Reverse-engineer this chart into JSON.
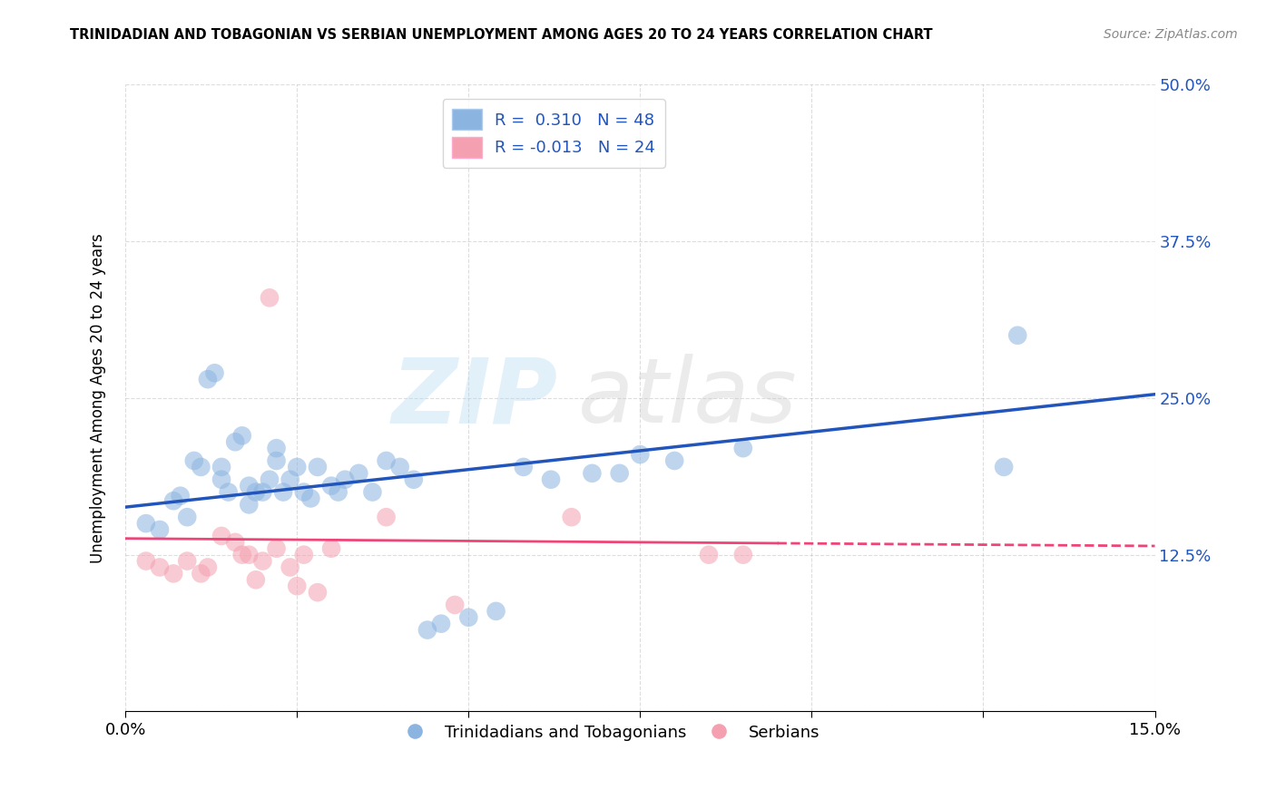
{
  "title": "TRINIDADIAN AND TOBAGONIAN VS SERBIAN UNEMPLOYMENT AMONG AGES 20 TO 24 YEARS CORRELATION CHART",
  "source": "Source: ZipAtlas.com",
  "ylabel": "Unemployment Among Ages 20 to 24 years",
  "xlim": [
    0.0,
    0.15
  ],
  "ylim": [
    0.0,
    0.5
  ],
  "xticks": [
    0.0,
    0.025,
    0.05,
    0.075,
    0.1,
    0.125,
    0.15
  ],
  "xticklabels": [
    "0.0%",
    "",
    "",
    "",
    "",
    "",
    "15.0%"
  ],
  "yticks": [
    0.0,
    0.125,
    0.25,
    0.375,
    0.5
  ],
  "yticklabels": [
    "",
    "12.5%",
    "25.0%",
    "37.5%",
    "50.0%"
  ],
  "legend1_label": "Trinidadians and Tobagonians",
  "legend2_label": "Serbians",
  "r1": 0.31,
  "n1": 48,
  "r2": -0.013,
  "n2": 24,
  "blue_color": "#8BB4E0",
  "pink_color": "#F4A0B0",
  "blue_line_color": "#2255BB",
  "pink_line_color": "#EE4477",
  "blue_scatter_x": [
    0.003,
    0.005,
    0.007,
    0.008,
    0.009,
    0.01,
    0.011,
    0.012,
    0.013,
    0.014,
    0.014,
    0.015,
    0.016,
    0.017,
    0.018,
    0.018,
    0.019,
    0.02,
    0.021,
    0.022,
    0.022,
    0.023,
    0.024,
    0.025,
    0.026,
    0.027,
    0.028,
    0.03,
    0.031,
    0.032,
    0.034,
    0.036,
    0.038,
    0.04,
    0.042,
    0.044,
    0.046,
    0.05,
    0.054,
    0.058,
    0.062,
    0.068,
    0.072,
    0.075,
    0.08,
    0.09,
    0.13,
    0.128
  ],
  "blue_scatter_y": [
    0.15,
    0.145,
    0.168,
    0.172,
    0.155,
    0.2,
    0.195,
    0.265,
    0.27,
    0.195,
    0.185,
    0.175,
    0.215,
    0.22,
    0.165,
    0.18,
    0.175,
    0.175,
    0.185,
    0.2,
    0.21,
    0.175,
    0.185,
    0.195,
    0.175,
    0.17,
    0.195,
    0.18,
    0.175,
    0.185,
    0.19,
    0.175,
    0.2,
    0.195,
    0.185,
    0.065,
    0.07,
    0.075,
    0.08,
    0.195,
    0.185,
    0.19,
    0.19,
    0.205,
    0.2,
    0.21,
    0.3,
    0.195
  ],
  "pink_scatter_x": [
    0.003,
    0.005,
    0.007,
    0.009,
    0.011,
    0.012,
    0.014,
    0.016,
    0.017,
    0.018,
    0.019,
    0.02,
    0.022,
    0.024,
    0.026,
    0.028,
    0.03,
    0.038,
    0.048,
    0.065,
    0.085,
    0.09,
    0.021,
    0.025
  ],
  "pink_scatter_y": [
    0.12,
    0.115,
    0.11,
    0.12,
    0.11,
    0.115,
    0.14,
    0.135,
    0.125,
    0.125,
    0.105,
    0.12,
    0.13,
    0.115,
    0.125,
    0.095,
    0.13,
    0.155,
    0.085,
    0.155,
    0.125,
    0.125,
    0.33,
    0.1
  ],
  "blue_line_x0": 0.0,
  "blue_line_y0": 0.163,
  "blue_line_x1": 0.15,
  "blue_line_y1": 0.253,
  "pink_line_x0": 0.0,
  "pink_line_y0": 0.138,
  "pink_line_x1": 0.15,
  "pink_line_y1": 0.132
}
